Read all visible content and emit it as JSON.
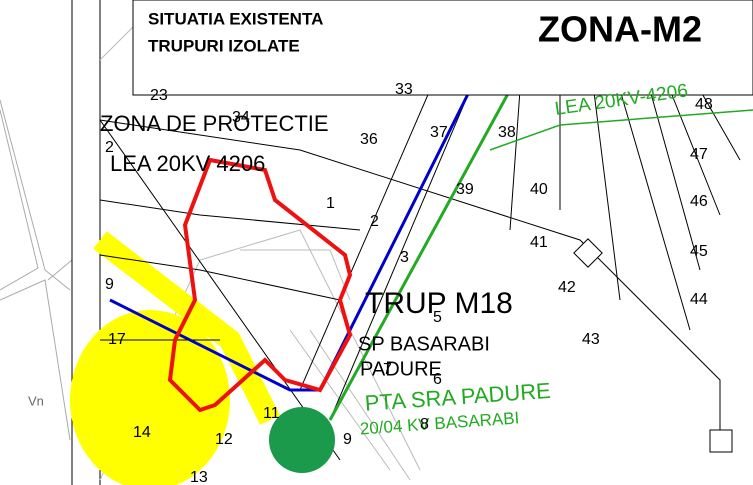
{
  "title_box": {
    "line1": "SITUATIA EXISTENTA",
    "line2": "TRUPURI IZOLATE",
    "zone": "ZONA-M2"
  },
  "side_label": "Vn",
  "annotations": {
    "protection_zone": "ZONA DE PROTECTIE",
    "line_black": "LEA 20KV 4206",
    "line_green": "LEA 20KV-4206",
    "parcel_name": "TRUP   M18",
    "station": "SP BASARABI",
    "station_sub": "PADURE",
    "transformer": "PTA SRA PADURE",
    "transformer_sub": "20/04 KV BASARABI"
  },
  "parcels": [
    "23",
    "33",
    "34",
    "36",
    "37",
    "38",
    "39",
    "40",
    "41",
    "42",
    "43",
    "44",
    "45",
    "46",
    "47",
    "48",
    "1",
    "2",
    "3",
    "5",
    "6",
    "7",
    "8",
    "9",
    "11",
    "12",
    "13",
    "14",
    "17",
    "9",
    "2"
  ]
}
